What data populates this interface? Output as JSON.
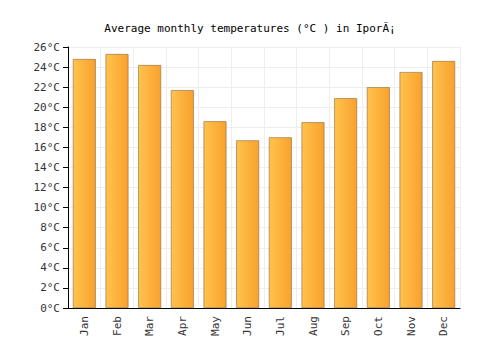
{
  "chart_data": {
    "type": "bar",
    "title": "Average monthly temperatures (°C ) in IporÃ¡",
    "categories": [
      "Jan",
      "Feb",
      "Mar",
      "Apr",
      "May",
      "Jun",
      "Jul",
      "Aug",
      "Sep",
      "Oct",
      "Nov",
      "Dec"
    ],
    "values": [
      24.8,
      25.3,
      24.2,
      21.7,
      18.6,
      16.7,
      17.0,
      18.5,
      20.9,
      22.0,
      23.5,
      24.6
    ],
    "color": "#f9a12e",
    "ylim": [
      0,
      26
    ],
    "yticks": [
      {
        "value": 0,
        "label": "0°C"
      },
      {
        "value": 2,
        "label": "2°C"
      },
      {
        "value": 4,
        "label": "4°C"
      },
      {
        "value": 6,
        "label": "6°C"
      },
      {
        "value": 8,
        "label": "8°C"
      },
      {
        "value": 10,
        "label": "10°C"
      },
      {
        "value": 12,
        "label": "12°C"
      },
      {
        "value": 14,
        "label": "14°C"
      },
      {
        "value": 16,
        "label": "16°C"
      },
      {
        "value": 18,
        "label": "18°C"
      },
      {
        "value": 20,
        "label": "20°C"
      },
      {
        "value": 22,
        "label": "22°C"
      },
      {
        "value": 24,
        "label": "24°C"
      },
      {
        "value": 26,
        "label": "26°C"
      }
    ],
    "grid": true
  }
}
